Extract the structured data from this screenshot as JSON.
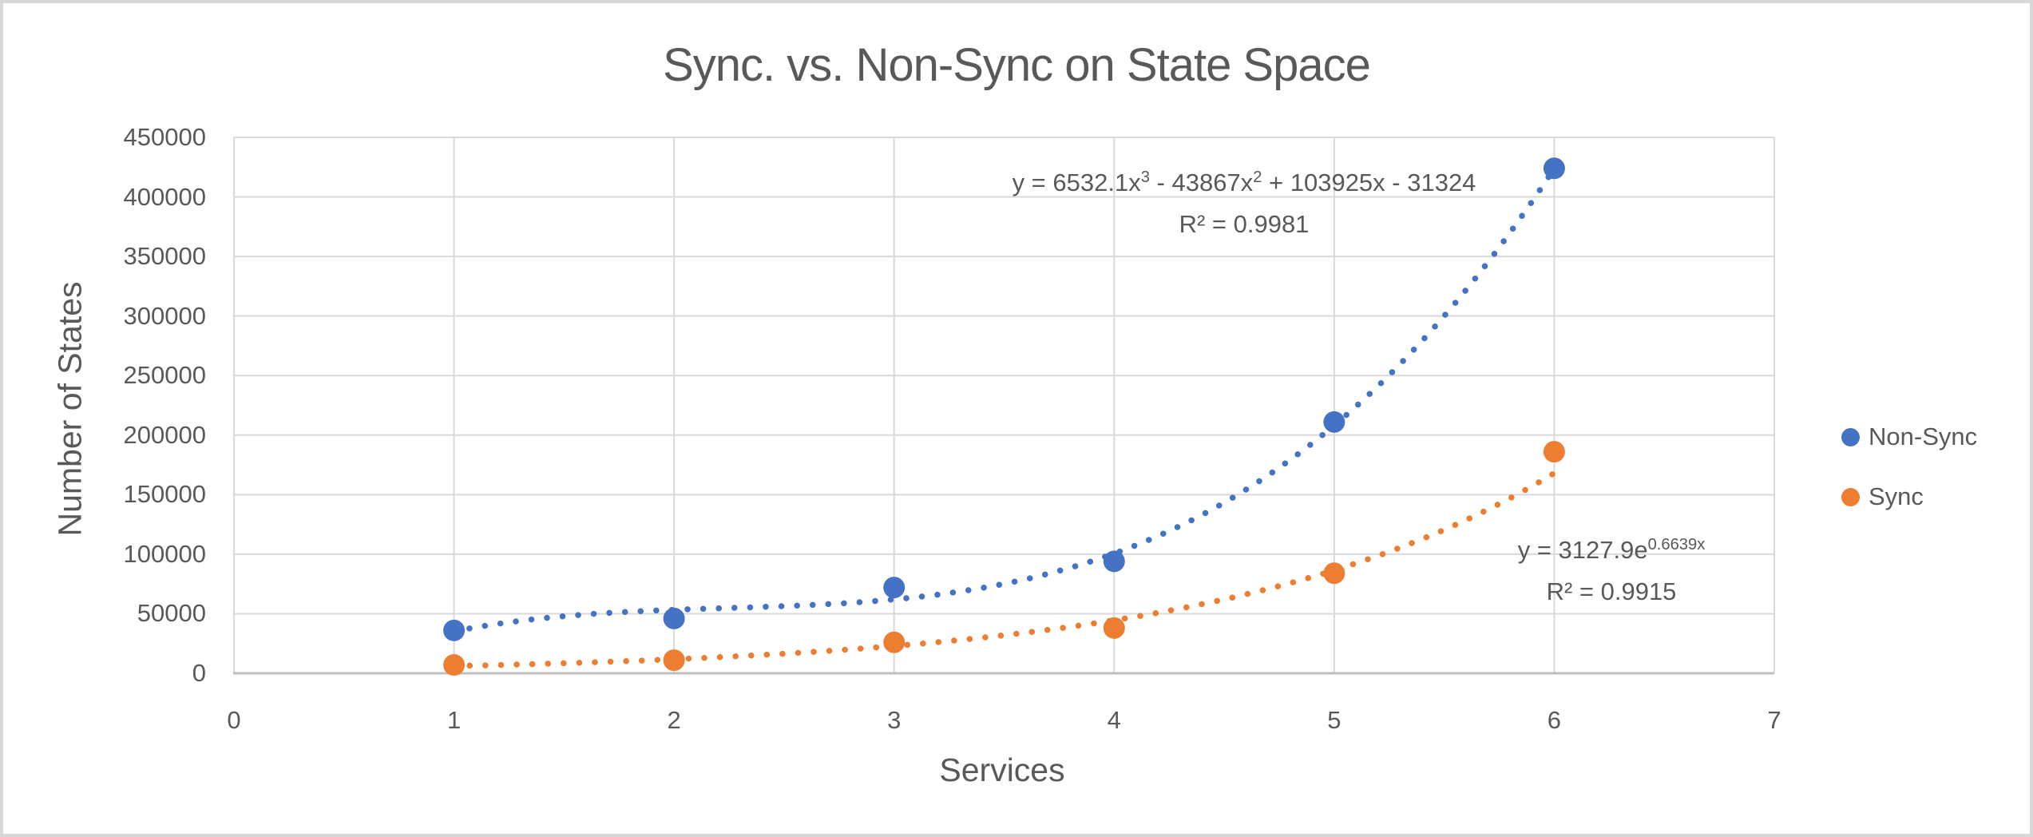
{
  "frame": {
    "background": "#ffffff",
    "border_color": "#d8d8d8"
  },
  "chart_data": {
    "type": "scatter",
    "title": "Sync. vs. Non-Sync on State Space",
    "xlabel": "Services",
    "ylabel": "Number of States",
    "xlim": [
      0,
      7
    ],
    "ylim": [
      0,
      450000
    ],
    "x_ticks": [
      0,
      1,
      2,
      3,
      4,
      5,
      6,
      7
    ],
    "y_ticks": [
      0,
      50000,
      100000,
      150000,
      200000,
      250000,
      300000,
      350000,
      400000,
      450000
    ],
    "grid": true,
    "legend_position": "right-middle",
    "x": [
      1,
      2,
      3,
      4,
      5,
      6
    ],
    "series": [
      {
        "name": "Non-Sync",
        "color": "#4472C4",
        "marker": "circle",
        "values": [
          36000,
          46000,
          72000,
          94000,
          211000,
          424000
        ],
        "trendline": {
          "style": "dotted",
          "domain": [
            1,
            6
          ],
          "model": {
            "type": "poly",
            "coeffs": [
              6532.1,
              -43867,
              103925,
              -31324
            ]
          },
          "equation_parts": [
            {
              "text": "y = 6532.1x"
            },
            {
              "text": "3",
              "sup": true
            },
            {
              "text": " - 43867x"
            },
            {
              "text": "2",
              "sup": true
            },
            {
              "text": " + 103925x - 31324"
            }
          ],
          "r2": "R² = 0.9981"
        }
      },
      {
        "name": "Sync",
        "color": "#ED7D31",
        "marker": "circle",
        "values": [
          7000,
          11000,
          26000,
          38000,
          84000,
          186000
        ],
        "trendline": {
          "style": "dotted",
          "domain": [
            1,
            6
          ],
          "model": {
            "type": "exp",
            "a": 3127.9,
            "b": 0.6639
          },
          "equation_parts": [
            {
              "text": "y = 3127.9e"
            },
            {
              "text": "0.6639x",
              "sup": true
            }
          ],
          "r2": "R² = 0.9915"
        }
      }
    ],
    "colors": {
      "text": "#595959",
      "gridline": "#d9d9d9",
      "axis_line": "#bfbfbf",
      "plot_background": "#ffffff"
    }
  }
}
